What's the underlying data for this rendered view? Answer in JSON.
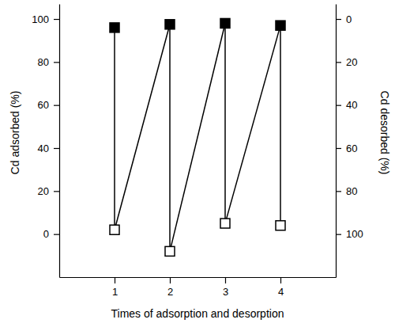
{
  "chart_data": {
    "type": "line",
    "x_label": "Times of adsorption and desorption",
    "y_label": "Cd adsorbed (%)",
    "y2_label": "Cd desorbed (%)",
    "x": [
      1,
      2,
      3,
      4
    ],
    "xlim": [
      0,
      5
    ],
    "xticks": [
      1,
      2,
      3,
      4
    ],
    "ylim": [
      -20,
      107
    ],
    "yticks": [
      0,
      20,
      40,
      60,
      80,
      100
    ],
    "y2lim": [
      120,
      -7
    ],
    "y2ticks": [
      0,
      20,
      40,
      60,
      80,
      100
    ],
    "grid": false,
    "series": [
      {
        "values": [
          96,
          97.5,
          98,
          97
        ],
        "color": "#000000",
        "marker": "filled-square",
        "line_style": "solid"
      },
      {
        "values": [
          98,
          108,
          95,
          96
        ],
        "color": "#000000",
        "marker": "open-square",
        "line_style": "solid",
        "axis": "y2"
      }
    ]
  }
}
